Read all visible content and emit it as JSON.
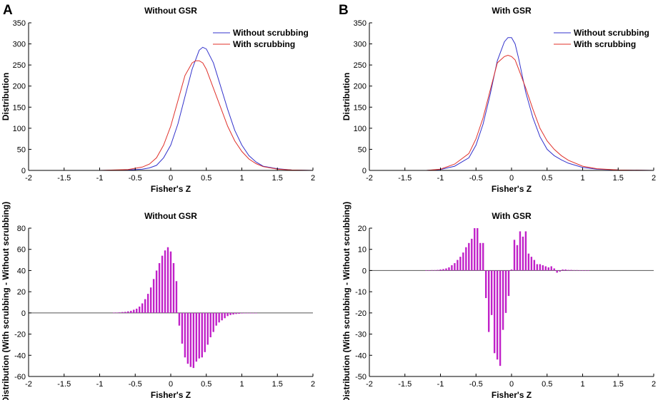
{
  "figure": {
    "panel_labels": [
      "A",
      "B"
    ]
  },
  "colors": {
    "without_scrubbing": "#3333cc",
    "with_scrubbing": "#e0302a",
    "bars": "#c020c8",
    "zero_line": "#555555",
    "axis": "#000000"
  },
  "chart_data": [
    {
      "type": "line",
      "title": "Without GSR",
      "xlabel": "Fisher's Z",
      "ylabel": "Distribution",
      "xlim": [
        -2,
        2
      ],
      "ylim": [
        0,
        350
      ],
      "xticks": [
        -2,
        -1.5,
        -1,
        -0.5,
        0,
        0.5,
        1,
        1.5,
        2
      ],
      "xtick_labels": [
        "-2",
        "-1.5",
        "-1",
        "-0.5",
        "0",
        "0.5",
        "1",
        "1.5",
        "2"
      ],
      "yticks": [
        0,
        50,
        100,
        150,
        200,
        250,
        300,
        350
      ],
      "ytick_labels": [
        "0",
        "50",
        "100",
        "150",
        "200",
        "250",
        "300",
        "350"
      ],
      "legend": {
        "position": "top-right",
        "entries": [
          "Without scrubbing",
          "With scrubbing"
        ]
      },
      "series": [
        {
          "name": "Without scrubbing",
          "x": [
            -2,
            -1,
            -0.6,
            -0.4,
            -0.3,
            -0.2,
            -0.1,
            0,
            0.1,
            0.2,
            0.3,
            0.4,
            0.45,
            0.5,
            0.6,
            0.7,
            0.8,
            0.9,
            1.0,
            1.1,
            1.2,
            1.3,
            1.5,
            1.7,
            2
          ],
          "y": [
            0,
            0,
            1,
            3,
            6,
            12,
            30,
            60,
            110,
            175,
            240,
            285,
            292,
            288,
            255,
            200,
            145,
            95,
            60,
            35,
            20,
            10,
            4,
            1,
            0
          ]
        },
        {
          "name": "With scrubbing",
          "x": [
            -2,
            -1,
            -0.6,
            -0.4,
            -0.3,
            -0.2,
            -0.1,
            0,
            0.1,
            0.2,
            0.3,
            0.35,
            0.4,
            0.45,
            0.5,
            0.6,
            0.7,
            0.8,
            0.9,
            1.0,
            1.1,
            1.2,
            1.3,
            1.5,
            1.7,
            2
          ],
          "y": [
            0,
            0,
            2,
            8,
            15,
            30,
            60,
            105,
            165,
            225,
            255,
            260,
            260,
            255,
            240,
            195,
            150,
            105,
            70,
            45,
            27,
            16,
            9,
            3,
            1,
            0
          ]
        }
      ]
    },
    {
      "type": "line",
      "title": "With GSR",
      "xlabel": "Fisher's Z",
      "ylabel": "Distribution",
      "xlim": [
        -2,
        2
      ],
      "ylim": [
        0,
        350
      ],
      "xticks": [
        -2,
        -1.5,
        -1,
        -0.5,
        0,
        0.5,
        1,
        1.5,
        2
      ],
      "xtick_labels": [
        "-2",
        "-1.5",
        "-1",
        "-0.5",
        "0",
        "0.5",
        "1",
        "1.5",
        "2"
      ],
      "yticks": [
        0,
        50,
        100,
        150,
        200,
        250,
        300,
        350
      ],
      "ytick_labels": [
        "0",
        "50",
        "100",
        "150",
        "200",
        "250",
        "300",
        "350"
      ],
      "legend": {
        "position": "top-right",
        "entries": [
          "Without scrubbing",
          "With scrubbing"
        ]
      },
      "series": [
        {
          "name": "Without scrubbing",
          "x": [
            -2,
            -1.2,
            -1,
            -0.8,
            -0.6,
            -0.5,
            -0.4,
            -0.3,
            -0.2,
            -0.1,
            -0.05,
            0,
            0.05,
            0.1,
            0.2,
            0.3,
            0.4,
            0.5,
            0.6,
            0.7,
            0.8,
            1.0,
            1.2,
            1.5,
            2
          ],
          "y": [
            0,
            0,
            2,
            10,
            30,
            60,
            110,
            180,
            260,
            305,
            315,
            315,
            300,
            265,
            185,
            125,
            80,
            50,
            35,
            25,
            17,
            7,
            3,
            1,
            0
          ]
        },
        {
          "name": "With scrubbing",
          "x": [
            -2,
            -1.2,
            -1,
            -0.8,
            -0.6,
            -0.5,
            -0.4,
            -0.3,
            -0.2,
            -0.1,
            -0.05,
            0,
            0.05,
            0.1,
            0.2,
            0.3,
            0.4,
            0.5,
            0.6,
            0.7,
            0.8,
            1.0,
            1.2,
            1.5,
            2
          ],
          "y": [
            0,
            0,
            3,
            15,
            40,
            75,
            125,
            190,
            255,
            270,
            273,
            270,
            262,
            240,
            195,
            145,
            100,
            70,
            50,
            35,
            24,
            10,
            4,
            1,
            0
          ]
        }
      ]
    },
    {
      "type": "bar",
      "title": "Without GSR",
      "xlabel": "Fisher's Z",
      "ylabel": "Distribution (With scrubbing - Without scrubbing)",
      "xlim": [
        -2,
        2
      ],
      "ylim": [
        -60,
        80
      ],
      "xticks": [
        -2,
        -1.5,
        -1,
        -0.5,
        0,
        0.5,
        1,
        1.5,
        2
      ],
      "xtick_labels": [
        "-2",
        "-1.5",
        "-1",
        "-0.5",
        "0",
        "0.5",
        "1",
        "1.5",
        "2"
      ],
      "yticks": [
        -60,
        -40,
        -20,
        0,
        20,
        40,
        60,
        80
      ],
      "ytick_labels": [
        "-60",
        "-40",
        "-20",
        "0",
        "20",
        "40",
        "60",
        "80"
      ],
      "bar_start": -0.8,
      "bar_step": 0.04,
      "values": [
        0.2,
        0.3,
        0.5,
        0.8,
        1,
        1.5,
        2,
        3,
        4,
        6,
        9,
        13,
        18,
        24,
        32,
        40,
        47,
        54,
        59,
        62,
        58,
        47,
        30,
        -12,
        -29,
        -42,
        -48,
        -51,
        -52,
        -46,
        -43,
        -42,
        -37,
        -30,
        -23,
        -18,
        -12,
        -9,
        -7,
        -5,
        -3,
        -2,
        -1.5,
        -1,
        -0.8,
        -0.5,
        -0.4,
        -0.3,
        -0.2,
        -0.2,
        -0.1
      ]
    },
    {
      "type": "bar",
      "title": "With GSR",
      "xlabel": "Fisher's Z",
      "ylabel": "Distribution (With scrubbing - Without scrubbing)",
      "xlim": [
        -2,
        2
      ],
      "ylim": [
        -50,
        20
      ],
      "xticks": [
        -2,
        -1.5,
        -1,
        -0.5,
        0,
        0.5,
        1,
        1.5,
        2
      ],
      "xtick_labels": [
        "-2",
        "-1.5",
        "-1",
        "-0.5",
        "0",
        "0.5",
        "1",
        "1.5",
        "2"
      ],
      "yticks": [
        -50,
        -40,
        -30,
        -20,
        -10,
        0,
        10,
        20
      ],
      "ytick_labels": [
        "-50",
        "-40",
        "-30",
        "-20",
        "-10",
        "0",
        "10",
        "20"
      ],
      "bar_start": -1.2,
      "bar_step": 0.04,
      "values": [
        0.1,
        0.1,
        0.2,
        0.2,
        0.3,
        0.5,
        0.7,
        1,
        1.5,
        2.5,
        3.5,
        5,
        6.5,
        8.5,
        11,
        13,
        15,
        20,
        20,
        13,
        13,
        -13,
        -29,
        -21,
        -39,
        -42,
        -45,
        -28,
        -20,
        -12,
        0.5,
        14.5,
        12,
        18.5,
        16,
        18.5,
        8,
        6.5,
        5,
        3,
        3,
        2.5,
        2,
        1.5,
        2,
        1,
        -1,
        -0.5,
        0.5,
        0.5,
        0.3,
        0.3,
        0.2,
        0.2,
        0.1,
        0.1,
        0.1,
        0.1
      ]
    }
  ]
}
